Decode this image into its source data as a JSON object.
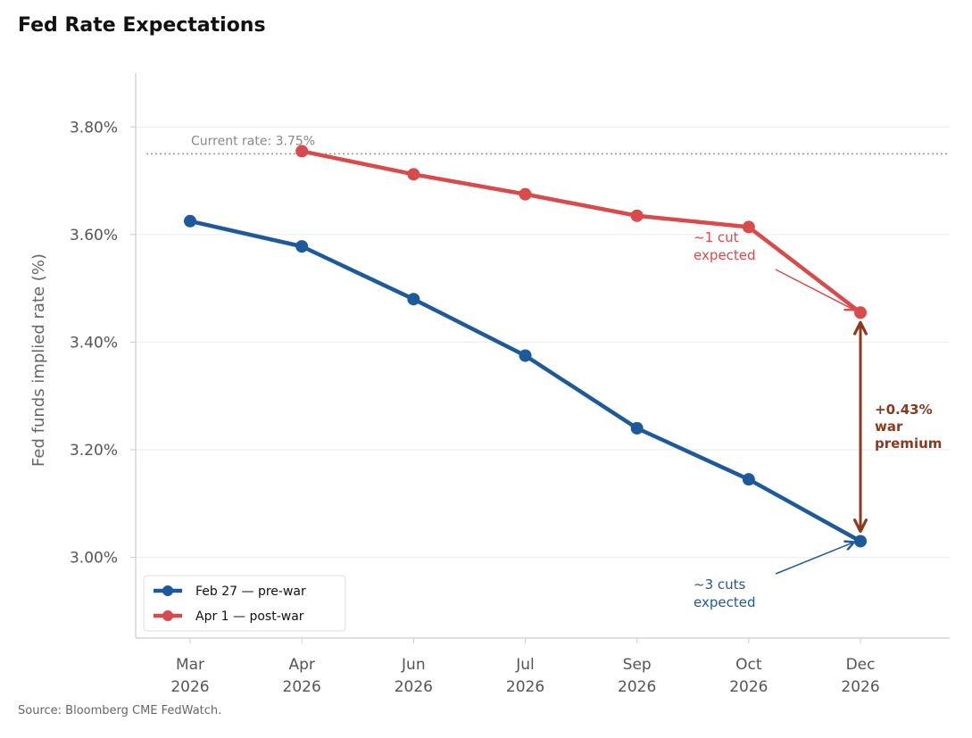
{
  "chart_data": {
    "type": "line",
    "title": "Fed Rate Expectations",
    "ylabel": "Fed funds implied rate (%)",
    "xlabel": "",
    "ylim": [
      2.85,
      3.9
    ],
    "yticks": [
      3.0,
      3.2,
      3.4,
      3.6,
      3.8
    ],
    "ytick_labels": [
      "3.00%",
      "3.20%",
      "3.40%",
      "3.60%",
      "3.80%"
    ],
    "x_categories": [
      {
        "month": "Mar",
        "year": "2026"
      },
      {
        "month": "Apr",
        "year": "2026"
      },
      {
        "month": "Jun",
        "year": "2026"
      },
      {
        "month": "Jul",
        "year": "2026"
      },
      {
        "month": "Sep",
        "year": "2026"
      },
      {
        "month": "Oct",
        "year": "2026"
      },
      {
        "month": "Dec",
        "year": "2026"
      }
    ],
    "grid": "horizontal",
    "legend_position": "bottom-left",
    "series": [
      {
        "name": "Feb 27 — pre-war",
        "color": "#1c5a9c",
        "values": [
          3.625,
          3.578,
          3.48,
          3.375,
          3.24,
          3.145,
          3.03
        ]
      },
      {
        "name": "Apr 1 — post-war",
        "color": "#d94a4a",
        "values": [
          null,
          3.755,
          3.712,
          3.675,
          3.635,
          3.614,
          3.455
        ]
      }
    ],
    "reference_line": {
      "value": 3.75,
      "label": "Current rate: 3.75%",
      "color": "#999999"
    },
    "annotations": {
      "post_war_note": {
        "lines": [
          "~1 cut",
          "expected"
        ],
        "color": "#d94a4a",
        "points_to": {
          "x_index": 6,
          "value": 3.455
        }
      },
      "pre_war_note": {
        "lines": [
          "~3 cuts",
          "expected"
        ],
        "color": "#1c5a9c",
        "points_to": {
          "x_index": 6,
          "value": 3.03
        }
      },
      "gap_note": {
        "lines": [
          "+0.43%",
          "war",
          "premium"
        ],
        "color": "#8b3a1e",
        "from": 3.03,
        "to": 3.455,
        "x_index": 6
      }
    }
  },
  "source": "Source: Bloomberg CME FedWatch."
}
